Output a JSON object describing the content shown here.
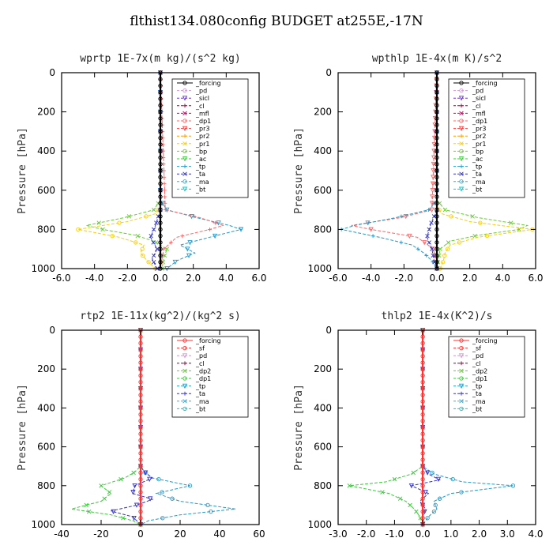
{
  "figure_title": "flthist134.080config  BUDGET at255E,-17N",
  "colors": {
    "forcing": "#000000",
    "pd": "#cc99cc",
    "sicl": "#6633cc",
    "cl": "#990033",
    "mfl": "#cc0066",
    "dp1": "#ff6666",
    "pr3": "#ff3333",
    "pr2": "#ff9900",
    "pr1": "#ffcc00",
    "bp": "#66cc33",
    "ac": "#33cc33",
    "tp": "#2299cc",
    "ta": "#3333cc",
    "ma": "#33aadd",
    "bt": "#00cccc",
    "sf": "#ff3333",
    "dp2": "#66cc33"
  },
  "chart_data": [
    {
      "type": "line",
      "title": "wprtp  1E-7x(m kg)/(s^2 kg)",
      "ylabel": "Pressure [hPa]",
      "xlim": [
        -6,
        6
      ],
      "ylim": [
        1000,
        0
      ],
      "xticks": [
        "-6.0",
        "-4.0",
        "-2.0",
        "0.0",
        "2.0",
        "4.0",
        "6.0"
      ],
      "xtick_values": [
        -6,
        -4,
        -2,
        0,
        2,
        4,
        6
      ],
      "yticks": [
        "0",
        "200",
        "400",
        "600",
        "800",
        "1000"
      ],
      "ytick_values": [
        0,
        200,
        400,
        600,
        800,
        1000
      ],
      "legend": [
        "_forcing",
        "_pd",
        "_sicl",
        "_cl",
        "_mfl",
        "_dp1",
        "_pr3",
        "_pr2",
        "_pr1",
        "_bp",
        "_ac",
        "_tp",
        "_ta",
        "_ma",
        "_bt"
      ],
      "series": [
        {
          "name": "_bp",
          "color_key": "bp",
          "pressure": [
            0,
            650,
            700,
            740,
            780,
            800,
            830,
            860,
            900,
            950,
            1000
          ],
          "values": [
            0,
            0,
            -0.4,
            -2.2,
            -4.5,
            -3.5,
            -1.5,
            -0.4,
            0.4,
            0.2,
            0.1
          ]
        },
        {
          "name": "_pr1",
          "color_key": "pr1",
          "pressure": [
            0,
            680,
            720,
            760,
            800,
            840,
            880,
            920,
            960,
            1000
          ],
          "values": [
            0,
            0,
            -0.3,
            -2.0,
            -5.0,
            -2.5,
            -1.0,
            -1.2,
            -0.8,
            -0.3
          ]
        },
        {
          "name": "_tp",
          "color_key": "tp",
          "pressure": [
            0,
            650,
            700,
            740,
            780,
            800,
            840,
            880,
            920,
            960,
            1000
          ],
          "values": [
            0,
            0,
            0.4,
            2.2,
            4.2,
            4.9,
            3.0,
            1.2,
            2.1,
            1.0,
            0.4
          ]
        },
        {
          "name": "_dp1",
          "color_key": "dp1",
          "pressure": [
            0,
            700,
            740,
            780,
            800,
            840,
            900,
            1000
          ],
          "values": [
            0,
            0.3,
            2.4,
            3.8,
            3.0,
            1.0,
            0.2,
            0
          ]
        },
        {
          "name": "_ta",
          "color_key": "ta",
          "pressure": [
            0,
            700,
            780,
            840,
            900,
            950,
            1000
          ],
          "values": [
            0,
            0,
            -0.3,
            -0.6,
            -0.2,
            -0.5,
            -0.2
          ]
        },
        {
          "name": "_forcing",
          "color_key": "forcing",
          "pressure": [
            0,
            1000
          ],
          "values": [
            0,
            0
          ]
        }
      ]
    },
    {
      "type": "line",
      "title": "wpthlp  1E-4x(m K)/s^2",
      "ylabel": "Pressure [hPa]",
      "xlim": [
        -6,
        6
      ],
      "ylim": [
        1000,
        0
      ],
      "xticks": [
        "-6.0",
        "-4.0",
        "-2.0",
        "0.0",
        "2.0",
        "4.0",
        "6.0"
      ],
      "xtick_values": [
        -6,
        -4,
        -2,
        0,
        2,
        4,
        6
      ],
      "yticks": [
        "0",
        "200",
        "400",
        "600",
        "800",
        "1000"
      ],
      "ytick_values": [
        0,
        200,
        400,
        600,
        800,
        1000
      ],
      "legend": [
        "_forcing",
        "_pd",
        "_sicl",
        "_cl",
        "_mfl",
        "_dp1",
        "_pr3",
        "_pr2",
        "_pr1",
        "_bp",
        "_ac",
        "_tp",
        "_ta",
        "_ma",
        "_bt"
      ],
      "series": [
        {
          "name": "_bp",
          "color_key": "bp",
          "pressure": [
            0,
            650,
            700,
            740,
            780,
            800,
            830,
            860,
            900,
            950,
            1000
          ],
          "values": [
            0,
            0,
            0.5,
            2.5,
            5.5,
            5.0,
            2.5,
            0.8,
            0.2,
            0.1,
            0
          ]
        },
        {
          "name": "_pr1",
          "color_key": "pr1",
          "pressure": [
            0,
            680,
            720,
            760,
            800,
            840,
            880,
            920,
            960,
            1000
          ],
          "values": [
            0,
            0,
            0.3,
            2.0,
            5.8,
            2.5,
            0.8,
            0.5,
            0.4,
            0.2
          ]
        },
        {
          "name": "_dp1",
          "color_key": "dp1",
          "pressure": [
            0,
            700,
            740,
            780,
            800,
            840,
            900,
            1000
          ],
          "values": [
            0,
            -0.3,
            -2.2,
            -5.2,
            -4.0,
            -1.2,
            -0.2,
            0
          ]
        },
        {
          "name": "_tp",
          "color_key": "tp",
          "pressure": [
            0,
            650,
            700,
            740,
            780,
            800,
            840,
            880,
            920,
            960,
            1000
          ],
          "values": [
            0,
            0,
            -0.5,
            -2.5,
            -5.0,
            -5.8,
            -3.5,
            -1.5,
            -0.8,
            -0.3,
            0
          ]
        },
        {
          "name": "_ta",
          "color_key": "ta",
          "pressure": [
            0,
            700,
            780,
            840,
            900,
            950,
            1000
          ],
          "values": [
            0,
            0,
            -0.4,
            -0.6,
            -0.3,
            -0.2,
            0
          ]
        },
        {
          "name": "_forcing",
          "color_key": "forcing",
          "pressure": [
            0,
            1000
          ],
          "values": [
            0,
            0
          ]
        }
      ]
    },
    {
      "type": "line",
      "title": "rtp2  1E-11x(kg^2)/(kg^2 s)",
      "ylabel": "Pressure [hPa]",
      "xlim": [
        -40,
        60
      ],
      "ylim": [
        1000,
        0
      ],
      "xticks": [
        "-40",
        "-20",
        "0",
        "20",
        "40",
        "60"
      ],
      "xtick_values": [
        -40,
        -20,
        0,
        20,
        40,
        60
      ],
      "yticks": [
        "0",
        "200",
        "400",
        "600",
        "800",
        "1000"
      ],
      "ytick_values": [
        0,
        200,
        400,
        600,
        800,
        1000
      ],
      "legend": [
        "_forcing",
        "_sf",
        "_pd",
        "_cl",
        "_dp2",
        "_dp1",
        "_tp",
        "_ta",
        "_ma",
        "_bt"
      ],
      "series": [
        {
          "name": "_dp1",
          "color_key": "ac",
          "pressure": [
            0,
            700,
            730,
            760,
            800,
            840,
            880,
            920,
            950,
            980,
            1000
          ],
          "values": [
            0,
            0,
            -3,
            -8,
            -20,
            -15,
            -20,
            -35,
            -15,
            -4,
            0
          ]
        },
        {
          "name": "_tp",
          "color_key": "tp",
          "pressure": [
            0,
            700,
            730,
            760,
            800,
            840,
            880,
            920,
            950,
            980,
            1000
          ],
          "values": [
            0,
            0,
            2,
            6,
            25,
            8,
            20,
            48,
            20,
            4,
            0
          ]
        },
        {
          "name": "_ta",
          "color_key": "ta",
          "pressure": [
            0,
            700,
            730,
            760,
            800,
            840,
            870,
            900,
            930,
            960,
            1000
          ],
          "values": [
            0,
            0,
            2,
            6,
            -3,
            -4,
            6,
            -2,
            -15,
            -4,
            0
          ]
        },
        {
          "name": "_forcing",
          "color_key": "sf",
          "pressure": [
            0,
            1000
          ],
          "values": [
            0,
            0
          ]
        }
      ]
    },
    {
      "type": "line",
      "title": "thlp2  1E-4x(K^2)/s",
      "ylabel": "Pressure [hPa]",
      "xlim": [
        -3,
        4
      ],
      "ylim": [
        1000,
        0
      ],
      "xticks": [
        "-3.0",
        "-2.0",
        "-1.0",
        "0.0",
        "1.0",
        "2.0",
        "3.0",
        "4.0"
      ],
      "xtick_values": [
        -3,
        -2,
        -1,
        0,
        1,
        2,
        3,
        4
      ],
      "yticks": [
        "0",
        "200",
        "400",
        "600",
        "800",
        "1000"
      ],
      "ytick_values": [
        0,
        200,
        400,
        600,
        800,
        1000
      ],
      "legend": [
        "_forcing",
        "_sf",
        "_pd",
        "_cl",
        "_dp2",
        "_dp1",
        "_tp",
        "_ta",
        "_ma",
        "_bt"
      ],
      "series": [
        {
          "name": "_dp1",
          "color_key": "ac",
          "pressure": [
            0,
            700,
            740,
            780,
            800,
            840,
            880,
            920,
            960,
            1000
          ],
          "values": [
            0,
            0,
            -0.4,
            -1.3,
            -2.6,
            -1.2,
            -0.6,
            -0.3,
            -0.1,
            0
          ]
        },
        {
          "name": "_tp",
          "color_key": "tp",
          "pressure": [
            0,
            700,
            740,
            780,
            800,
            840,
            880,
            920,
            960,
            1000
          ],
          "values": [
            0,
            0,
            0.4,
            1.4,
            3.2,
            1.0,
            0.4,
            0.5,
            0.2,
            0
          ]
        },
        {
          "name": "_ta",
          "color_key": "ta",
          "pressure": [
            0,
            700,
            740,
            770,
            800,
            840,
            880,
            920,
            960,
            1000
          ],
          "values": [
            0,
            0,
            0.2,
            0.6,
            -0.4,
            0.2,
            -0.1,
            0.1,
            0,
            0
          ]
        },
        {
          "name": "_forcing",
          "color_key": "sf",
          "pressure": [
            0,
            1000
          ],
          "values": [
            0,
            0
          ]
        }
      ]
    }
  ]
}
